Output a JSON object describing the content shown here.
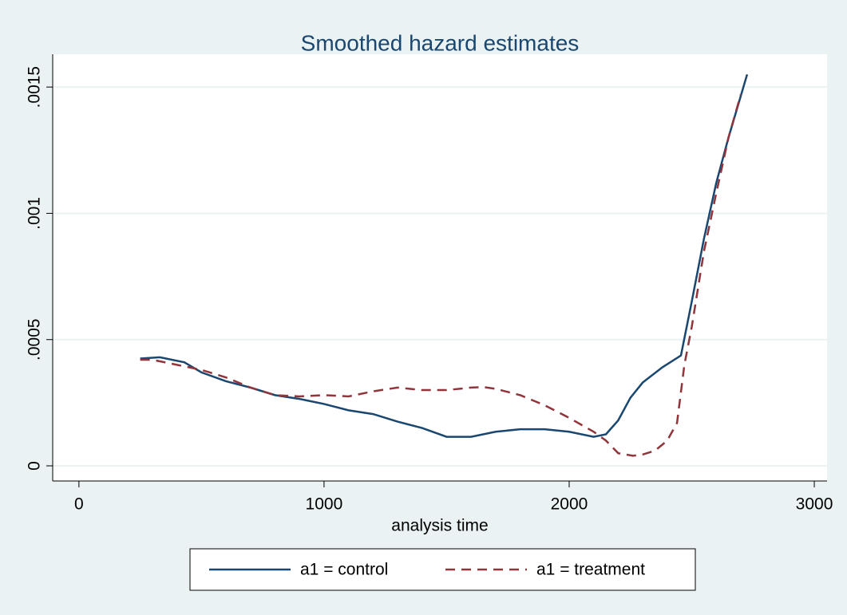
{
  "chart_data": {
    "type": "line",
    "title": "Smoothed hazard estimates",
    "x_label": "analysis time",
    "xlim": [
      -107,
      3052
    ],
    "xticks": [
      0,
      1000,
      2000,
      3000
    ],
    "ylim": [
      -6e-05,
      0.00163
    ],
    "yticks": [
      0,
      {
        "value": 0.0005,
        "label": ".0005"
      },
      {
        "value": 0.001,
        "label": ".001"
      },
      {
        "value": 0.0015,
        "label": ".0015"
      }
    ],
    "grid": true,
    "series": [
      {
        "name": "a1 = control",
        "color": "#1a476f",
        "dash": false,
        "x": [
          250,
          330,
          430,
          500,
          600,
          700,
          800,
          900,
          1000,
          1100,
          1200,
          1300,
          1400,
          1500,
          1600,
          1700,
          1800,
          1900,
          2000,
          2100,
          2150,
          2200,
          2250,
          2300,
          2380,
          2456,
          2500,
          2550,
          2600,
          2650,
          2726
        ],
        "values": [
          0.000425,
          0.00043,
          0.00041,
          0.00037,
          0.000335,
          0.00031,
          0.00028,
          0.000265,
          0.000245,
          0.00022,
          0.000205,
          0.000175,
          0.00015,
          0.000115,
          0.000115,
          0.000135,
          0.000145,
          0.000145,
          0.000135,
          0.000115,
          0.000125,
          0.00018,
          0.00027,
          0.00033,
          0.00039,
          0.000437,
          0.00065,
          0.0009,
          0.00112,
          0.0013,
          0.00155
        ]
      },
      {
        "name": "a1 = treatment",
        "color": "#90353b",
        "dash": true,
        "x": [
          250,
          300,
          400,
          500,
          600,
          700,
          800,
          900,
          1000,
          1100,
          1200,
          1300,
          1400,
          1500,
          1600,
          1650,
          1700,
          1800,
          1900,
          2000,
          2100,
          2150,
          2200,
          2260,
          2300,
          2350,
          2400,
          2440,
          2470,
          2500,
          2550,
          2600,
          2650,
          2700
        ],
        "values": [
          0.00042,
          0.00042,
          0.0004,
          0.00038,
          0.00035,
          0.00031,
          0.00028,
          0.000275,
          0.00028,
          0.000275,
          0.000295,
          0.00031,
          0.0003,
          0.0003,
          0.00031,
          0.000312,
          0.000305,
          0.00028,
          0.00024,
          0.00019,
          0.000135,
          0.0001,
          5e-05,
          4e-05,
          4.5e-05,
          6e-05,
          0.0001,
          0.00017,
          0.0004,
          0.00055,
          0.00085,
          0.00108,
          0.0013,
          0.00147
        ]
      }
    ]
  }
}
